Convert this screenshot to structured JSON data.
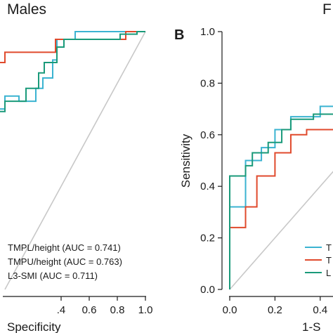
{
  "chart_data": [
    {
      "type": "line",
      "title": "Males",
      "panel_label": "",
      "xlabel": "Specificity",
      "ylabel": "",
      "xlim": [
        -0.1,
        1.0
      ],
      "ylim": [
        0.0,
        1.0
      ],
      "x_ticks": [
        ".4",
        "0.6",
        "0.8",
        "1.0"
      ],
      "x_tick_values": [
        0.4,
        0.6,
        0.8,
        1.0
      ],
      "reference_line": [
        [
          1.0,
          1.0
        ],
        [
          0.0,
          0.0
        ]
      ],
      "series": [
        {
          "name": "TMPL/height (AUC = 0.741)",
          "color": "#3bb3d1",
          "points": [
            [
              -0.1,
              0.7
            ],
            [
              0.0,
              0.7
            ],
            [
              0.0,
              0.75
            ],
            [
              0.1,
              0.75
            ],
            [
              0.1,
              0.73
            ],
            [
              0.22,
              0.73
            ],
            [
              0.22,
              0.78
            ],
            [
              0.27,
              0.78
            ],
            [
              0.27,
              0.82
            ],
            [
              0.34,
              0.82
            ],
            [
              0.34,
              0.89
            ],
            [
              0.37,
              0.89
            ],
            [
              0.37,
              0.97
            ],
            [
              0.5,
              0.97
            ],
            [
              0.5,
              1.0
            ],
            [
              1.0,
              1.0
            ]
          ]
        },
        {
          "name": "TMPU/height (AUC = 0.763)",
          "color": "#e04a2c",
          "points": [
            [
              -0.1,
              0.88
            ],
            [
              0.0,
              0.88
            ],
            [
              0.0,
              0.92
            ],
            [
              0.36,
              0.92
            ],
            [
              0.36,
              0.97
            ],
            [
              0.86,
              0.97
            ],
            [
              0.86,
              1.0
            ],
            [
              1.0,
              1.0
            ]
          ]
        },
        {
          "name": "L3-SMI (AUC = 0.711)",
          "color": "#1a9a7a",
          "points": [
            [
              -0.1,
              0.69
            ],
            [
              0.0,
              0.69
            ],
            [
              0.0,
              0.73
            ],
            [
              0.15,
              0.73
            ],
            [
              0.15,
              0.78
            ],
            [
              0.24,
              0.78
            ],
            [
              0.24,
              0.84
            ],
            [
              0.28,
              0.84
            ],
            [
              0.28,
              0.88
            ],
            [
              0.37,
              0.88
            ],
            [
              0.37,
              0.94
            ],
            [
              0.42,
              0.94
            ],
            [
              0.42,
              0.97
            ],
            [
              0.82,
              0.97
            ],
            [
              0.82,
              0.99
            ],
            [
              0.94,
              0.99
            ],
            [
              0.94,
              1.0
            ],
            [
              1.0,
              1.0
            ]
          ]
        }
      ]
    },
    {
      "type": "line",
      "title": "F",
      "panel_label": "B",
      "xlabel": "1-S",
      "ylabel": "Sensitivity",
      "xlim": [
        0.0,
        0.55
      ],
      "ylim": [
        0.0,
        1.0
      ],
      "x_ticks": [
        "0.0",
        "0.2",
        "0.4"
      ],
      "x_tick_values": [
        0.0,
        0.2,
        0.4
      ],
      "y_ticks": [
        "0.0",
        "0.2",
        "0.4",
        "0.6",
        "0.8",
        "1.0"
      ],
      "y_tick_values": [
        0.0,
        0.2,
        0.4,
        0.6,
        0.8,
        1.0
      ],
      "reference_line": [
        [
          0.0,
          0.0
        ],
        [
          1.0,
          1.0
        ]
      ],
      "series": [
        {
          "name": "T",
          "color": "#3bb3d1",
          "points": [
            [
              0.0,
              0.0
            ],
            [
              0.0,
              0.32
            ],
            [
              0.07,
              0.32
            ],
            [
              0.07,
              0.5
            ],
            [
              0.14,
              0.5
            ],
            [
              0.14,
              0.55
            ],
            [
              0.2,
              0.55
            ],
            [
              0.2,
              0.62
            ],
            [
              0.27,
              0.62
            ],
            [
              0.27,
              0.67
            ],
            [
              0.4,
              0.67
            ],
            [
              0.4,
              0.71
            ],
            [
              0.5,
              0.71
            ],
            [
              0.5,
              0.74
            ],
            [
              0.55,
              0.74
            ]
          ]
        },
        {
          "name": "T",
          "color": "#e04a2c",
          "points": [
            [
              0.0,
              0.0
            ],
            [
              0.0,
              0.24
            ],
            [
              0.07,
              0.24
            ],
            [
              0.07,
              0.32
            ],
            [
              0.12,
              0.32
            ],
            [
              0.12,
              0.44
            ],
            [
              0.2,
              0.44
            ],
            [
              0.2,
              0.53
            ],
            [
              0.27,
              0.53
            ],
            [
              0.27,
              0.6
            ],
            [
              0.34,
              0.6
            ],
            [
              0.34,
              0.62
            ],
            [
              0.5,
              0.62
            ],
            [
              0.5,
              0.65
            ],
            [
              0.55,
              0.65
            ]
          ]
        },
        {
          "name": "L",
          "color": "#1a9a7a",
          "points": [
            [
              0.0,
              0.0
            ],
            [
              0.0,
              0.44
            ],
            [
              0.07,
              0.44
            ],
            [
              0.07,
              0.48
            ],
            [
              0.1,
              0.48
            ],
            [
              0.1,
              0.53
            ],
            [
              0.17,
              0.53
            ],
            [
              0.17,
              0.57
            ],
            [
              0.23,
              0.57
            ],
            [
              0.23,
              0.62
            ],
            [
              0.27,
              0.62
            ],
            [
              0.27,
              0.66
            ],
            [
              0.37,
              0.66
            ],
            [
              0.37,
              0.68
            ],
            [
              0.5,
              0.68
            ],
            [
              0.5,
              0.71
            ],
            [
              0.55,
              0.71
            ]
          ]
        }
      ]
    }
  ]
}
